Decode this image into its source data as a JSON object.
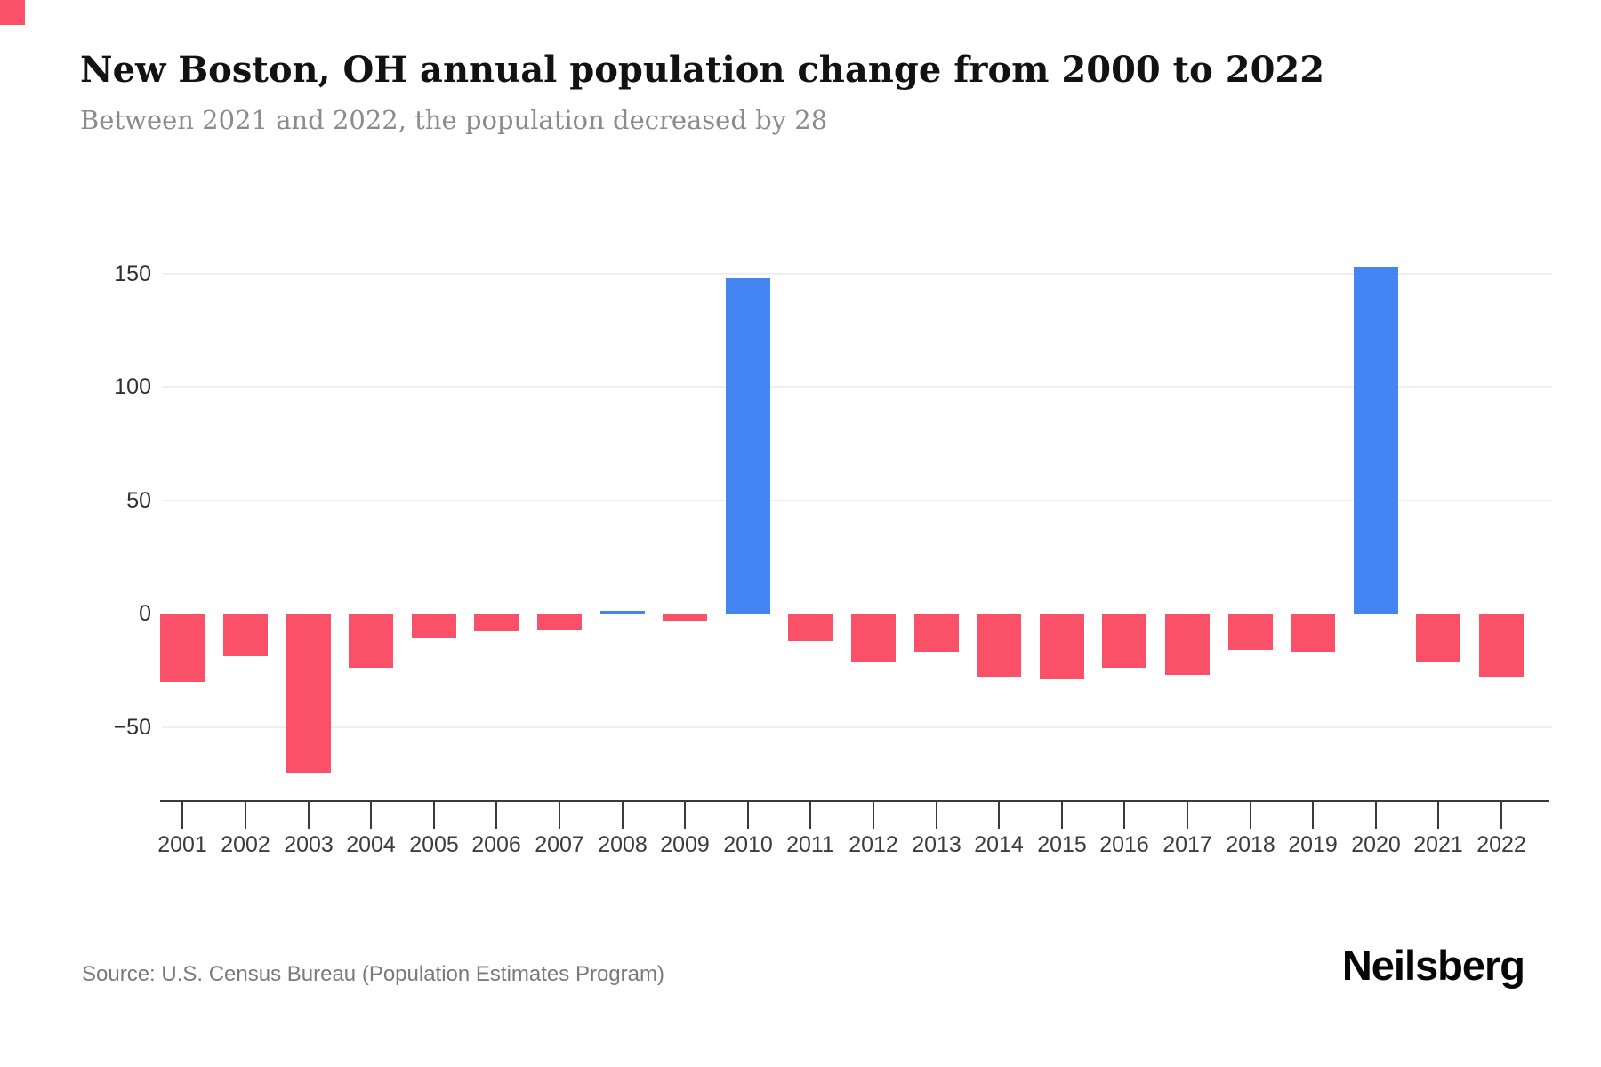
{
  "page": {
    "background": "#ffffff"
  },
  "corner_marker": {
    "color": "#FB5168"
  },
  "header": {
    "title": "New Boston, OH annual population change from 2000 to 2022",
    "subtitle": "Between 2021 and 2022, the population decreased by 28"
  },
  "chart_data": {
    "type": "bar",
    "title": "New Boston, OH annual population change from 2000 to 2022",
    "xlabel": "",
    "ylabel": "",
    "categories": [
      "2001",
      "2002",
      "2003",
      "2004",
      "2005",
      "2006",
      "2007",
      "2008",
      "2009",
      "2010",
      "2011",
      "2012",
      "2013",
      "2014",
      "2015",
      "2016",
      "2017",
      "2018",
      "2019",
      "2020",
      "2021",
      "2022"
    ],
    "values": [
      -30,
      -19,
      -70,
      -24,
      -11,
      -8,
      -7,
      1,
      -3,
      148,
      -12,
      -21,
      -17,
      -28,
      -29,
      -24,
      -27,
      -16,
      -17,
      153,
      -21,
      -28
    ],
    "yticks": [
      150,
      100,
      50,
      0,
      -50
    ],
    "ylim": [
      -78,
      168
    ],
    "grid": "horizontal-only, light gray, no line at zero",
    "legend": "none",
    "colors": {
      "positive": "#4385F3",
      "negative": "#FB5168"
    },
    "axis_color": "#3a3a3a"
  },
  "footer": {
    "source": "Source: U.S. Census Bureau (Population Estimates Program)",
    "brand": "Neilsberg"
  }
}
